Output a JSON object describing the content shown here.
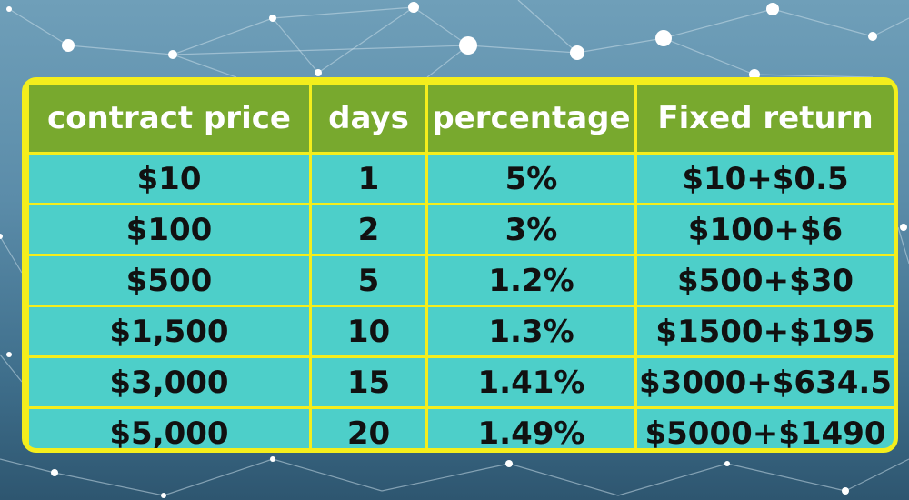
{
  "table": {
    "headers": [
      "contract price",
      "days",
      "percentage",
      "Fixed return"
    ],
    "rows": [
      [
        "$10",
        "1",
        "5%",
        "$10+$0.5"
      ],
      [
        "$100",
        "2",
        "3%",
        "$100+$6"
      ],
      [
        "$500",
        "5",
        "1.2%",
        "$500+$30"
      ],
      [
        "$1,500",
        "10",
        "1.3%",
        "$1500+$195"
      ],
      [
        "$3,000",
        "15",
        "1.41%",
        "$3000+$634.5"
      ],
      [
        "$5,000",
        "20",
        "1.49%",
        "$5000+$1490"
      ]
    ]
  },
  "colors": {
    "frame": "#f4ee1c",
    "header_bg": "#78a92e",
    "cell_bg": "#4dcfc9",
    "header_text": "#ffffff",
    "cell_text": "#111111",
    "background": "#5b8ca9"
  }
}
